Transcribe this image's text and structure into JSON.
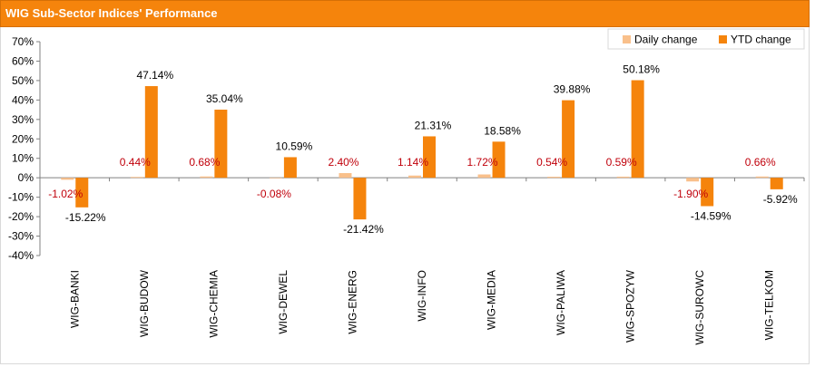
{
  "title": "WIG Sub-Sector Indices' Performance",
  "colors": {
    "header": "#f5840c",
    "daily": "#f9c08b",
    "ytd": "#f5840c",
    "daily_label": "#c0000b",
    "ytd_label": "#000000",
    "axis": "#808080"
  },
  "chart_data": {
    "type": "bar",
    "title": "WIG Sub-Sector Indices' Performance",
    "categories": [
      "WIG-BANKI",
      "WIG-BUDOW",
      "WIG-CHEMIA",
      "WIG-DEWEL",
      "WIG-ENERG",
      "WIG-INFO",
      "WIG-MEDIA",
      "WIG-PALIWA",
      "WIG-SPOZYW",
      "WIG-SUROWC",
      "WIG-TELKOM"
    ],
    "series": [
      {
        "name": "Daily change",
        "values": [
          -1.02,
          0.44,
          0.68,
          -0.08,
          2.4,
          1.14,
          1.72,
          0.54,
          0.59,
          -1.9,
          0.66
        ],
        "labels": [
          "-1.02%",
          "0.44%",
          "0.68%",
          "-0.08%",
          "2.40%",
          "1.14%",
          "1.72%",
          "0.54%",
          "0.59%",
          "-1.90%",
          "0.66%"
        ]
      },
      {
        "name": "YTD change",
        "values": [
          -15.22,
          47.14,
          35.04,
          10.59,
          -21.42,
          21.31,
          18.58,
          39.88,
          50.18,
          -14.59,
          -5.92
        ],
        "labels": [
          "-15.22%",
          "47.14%",
          "35.04%",
          "10.59%",
          "-21.42%",
          "21.31%",
          "18.58%",
          "39.88%",
          "50.18%",
          "-14.59%",
          "-5.92%"
        ]
      }
    ],
    "y_ticks": [
      "70%",
      "60%",
      "50%",
      "40%",
      "30%",
      "20%",
      "10%",
      "0%",
      "-10%",
      "-20%",
      "-30%",
      "-40%"
    ],
    "ylim": [
      -40,
      70
    ],
    "xlabel": "",
    "ylabel": "",
    "grid": false,
    "legend": "top-right"
  }
}
